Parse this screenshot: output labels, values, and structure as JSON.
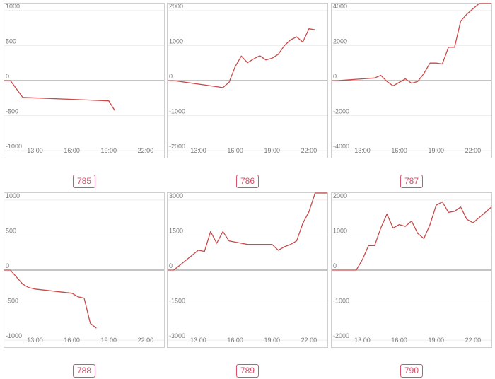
{
  "colors": {
    "line": "#c94a4a",
    "frame": "#cfcfcf",
    "grid": "#eeeeee",
    "zero": "#888888",
    "tick": "#777777",
    "badge": "#d9506b"
  },
  "x_ticks": [
    "13:00",
    "16:00",
    "19:00",
    "22:00"
  ],
  "chart_data": [
    {
      "type": "line",
      "label": "785",
      "x": [
        "10:30",
        "11:00",
        "12:00",
        "19:00",
        "19:30"
      ],
      "values": [
        0,
        0,
        -240,
        -290,
        -430
      ],
      "ylim": [
        -1100,
        1100
      ],
      "y_ticks": [
        1000,
        500,
        0,
        -500,
        -1000
      ],
      "xlim": [
        "10:30",
        "23:30"
      ]
    },
    {
      "type": "line",
      "label": "786",
      "x": [
        "10:30",
        "11:00",
        "15:00",
        "15:30",
        "16:00",
        "16:30",
        "17:00",
        "17:30",
        "18:00",
        "18:30",
        "19:00",
        "19:30",
        "20:00",
        "20:30",
        "21:00",
        "21:30",
        "22:00",
        "22:30"
      ],
      "values": [
        0,
        0,
        -200,
        -50,
        400,
        700,
        510,
        620,
        710,
        590,
        640,
        750,
        1000,
        1160,
        1250,
        1100,
        1480,
        1450
      ],
      "ylim": [
        -2200,
        2200
      ],
      "y_ticks": [
        2000,
        1000,
        0,
        -1000,
        -2000
      ],
      "xlim": [
        "10:30",
        "23:30"
      ]
    },
    {
      "type": "line",
      "label": "787",
      "x": [
        "10:30",
        "11:00",
        "14:00",
        "14:30",
        "15:00",
        "15:30",
        "16:00",
        "16:30",
        "17:00",
        "17:30",
        "18:00",
        "18:30",
        "19:00",
        "19:30",
        "20:00",
        "20:30",
        "21:00",
        "21:30",
        "22:00",
        "22:30",
        "23:00",
        "23:30"
      ],
      "values": [
        0,
        0,
        150,
        300,
        -50,
        -300,
        -100,
        100,
        -150,
        -50,
        400,
        1000,
        1000,
        950,
        1900,
        1900,
        3400,
        3800,
        4100,
        4800,
        5000,
        4600
      ],
      "ylim": [
        -4400,
        4400
      ],
      "y_ticks": [
        4000,
        2000,
        0,
        -2000,
        -4000
      ],
      "xlim": [
        "10:30",
        "23:30"
      ]
    },
    {
      "type": "line",
      "label": "788",
      "x": [
        "10:30",
        "11:00",
        "12:00",
        "12:30",
        "13:00",
        "16:00",
        "16:30",
        "17:00",
        "17:30",
        "18:00"
      ],
      "values": [
        0,
        0,
        -200,
        -250,
        -270,
        -330,
        -380,
        -400,
        -760,
        -830
      ],
      "ylim": [
        -1100,
        1100
      ],
      "y_ticks": [
        1000,
        500,
        0,
        -500,
        -1000
      ],
      "xlim": [
        "10:30",
        "23:30"
      ]
    },
    {
      "type": "line",
      "label": "789",
      "x": [
        "10:30",
        "11:00",
        "13:00",
        "13:30",
        "14:00",
        "14:30",
        "15:00",
        "15:30",
        "16:00",
        "16:30",
        "17:00",
        "17:30",
        "18:00",
        "18:30",
        "19:00",
        "19:30",
        "20:00",
        "20:30",
        "21:00",
        "21:30",
        "22:00",
        "22:30",
        "23:00",
        "23:30"
      ],
      "values": [
        0,
        0,
        850,
        800,
        1650,
        1150,
        1650,
        1250,
        1200,
        1150,
        1100,
        1100,
        1100,
        1100,
        1100,
        850,
        1000,
        1100,
        1250,
        2000,
        2500,
        3300,
        4000,
        3600
      ],
      "ylim": [
        -3300,
        3300
      ],
      "y_ticks": [
        3000,
        1500,
        0,
        -1500,
        -3000
      ],
      "xlim": [
        "10:30",
        "23:30"
      ]
    },
    {
      "type": "line",
      "label": "790",
      "x": [
        "10:30",
        "11:00",
        "12:00",
        "12:30",
        "13:00",
        "13:30",
        "14:00",
        "14:30",
        "15:00",
        "15:30",
        "16:00",
        "16:30",
        "17:00",
        "17:30",
        "18:00",
        "18:30",
        "19:00",
        "19:30",
        "20:00",
        "20:30",
        "21:00",
        "21:30",
        "22:00",
        "22:30",
        "23:00",
        "23:30"
      ],
      "values": [
        0,
        0,
        0,
        0,
        300,
        700,
        700,
        1200,
        1600,
        1200,
        1300,
        1250,
        1400,
        1050,
        900,
        1300,
        1850,
        1950,
        1650,
        1680,
        1800,
        1450,
        1350,
        1500,
        1650,
        1800
      ],
      "ylim": [
        -2200,
        2200
      ],
      "y_ticks": [
        2000,
        1000,
        0,
        -1000,
        -2000
      ],
      "xlim": [
        "10:30",
        "23:30"
      ]
    }
  ]
}
